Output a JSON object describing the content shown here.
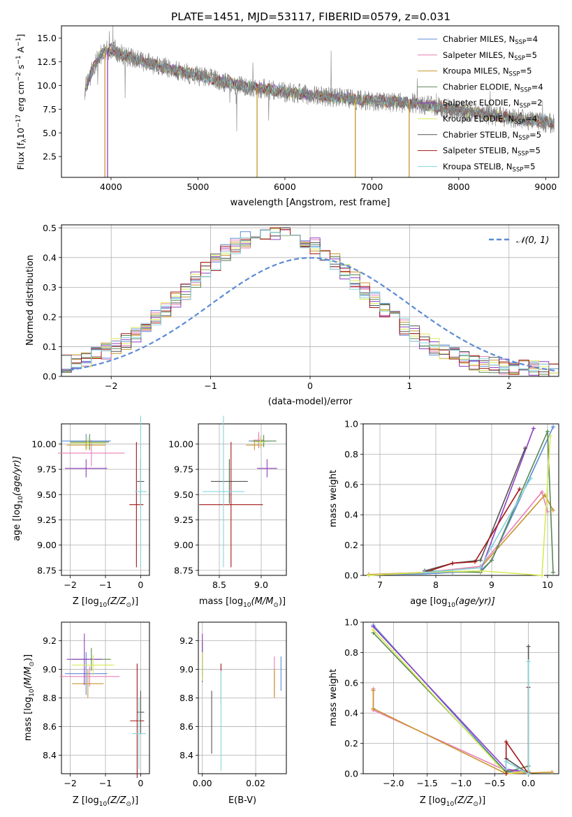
{
  "figure_title": "PLATE=1451, MJD=53117, FIBERID=0579, z=0.031",
  "model_names": [
    "Chabrier MILES, N",
    "Salpeter MILES, N",
    "Kroupa MILES, N",
    "Chabrier ELODIE, N",
    "Salpeter ELODIE, N",
    "Kroupa ELODIE, N",
    "Chabrier STELIB, N",
    "Salpeter STELIB, N",
    "Kroupa STELIB, N"
  ],
  "model_nssp_subscript": "SSP",
  "model_nssp": [
    "=4",
    "=5",
    "=5",
    "=4",
    "=2",
    "=4",
    "=5",
    "=5",
    "=5"
  ],
  "model_colors": [
    "#5b8bd6",
    "#e97fb5",
    "#c8952e",
    "#5a8a55",
    "#8e3fbf",
    "#d8ea56",
    "#555555",
    "#a31616",
    "#86d5dd"
  ],
  "axis_labels": {
    "spectrum_x": "wavelength [Angstrom, rest frame]",
    "spectrum_y_1": "Flux [f",
    "spectrum_y_2": "10",
    "spectrum_y_3": "−17",
    "spectrum_y_4": " erg cm",
    "spectrum_y_5": "−2",
    "spectrum_y_6": " s",
    "spectrum_y_7": "−1",
    "spectrum_y_8": " A",
    "spectrum_y_9": "−1",
    "spectrum_y_10": "]",
    "hist_x": "(data-model)/error",
    "hist_y": "Normed distribution",
    "hist_legend": "𝒩(0, 1)",
    "age_y": "age  [log",
    "age_y_tail": "(age/yr)]",
    "ten_sub": "10",
    "z_x": "Z [log",
    "z_x_tail": "(Z/Z",
    "z_x_close": ")]",
    "sun": "⊙",
    "mass_x": "mass [log",
    "mass_x_tail": "(M/M",
    "mass_x_close": ")]",
    "mw_y": "mass weight",
    "age_x": "age  [log",
    "age_x_tail": "(age/yr)]",
    "ebv_x": "E(B-V)",
    "mass_y": "mass [log",
    "mass_y_tail": "(M/M",
    "mass_y_close": ")]"
  },
  "chart_data": [
    {
      "id": "spectrum",
      "type": "line",
      "title": "PLATE=1451, MJD=53117, FIBERID=0579, z=0.031",
      "xlabel": "wavelength [Angstrom, rest frame]",
      "ylabel": "Flux [fλ10^-17 erg cm^-2 s^-1 A^-1]",
      "xlim": [
        3430,
        9150
      ],
      "ylim": [
        0.3,
        16.3
      ],
      "x_ticks": [
        4000,
        5000,
        6000,
        7000,
        8000,
        9000
      ],
      "y_ticks": [
        2.5,
        5.0,
        7.5,
        10.0,
        12.5,
        15.0
      ],
      "x_tick_labels": [
        "4000",
        "5000",
        "6000",
        "7000",
        "8000",
        "9000"
      ],
      "y_tick_labels": [
        "2.5",
        "5.0",
        "7.5",
        "10.0",
        "12.5",
        "15.0"
      ],
      "legend_position": "top-right",
      "continuum": {
        "x": [
          3700,
          3800,
          3900,
          4000,
          4200,
          4500,
          5000,
          5500,
          6000,
          6500,
          7000,
          7500,
          8000,
          8500,
          9100
        ],
        "y": [
          9.5,
          12.0,
          13.5,
          13.8,
          13.0,
          12.2,
          11.0,
          10.0,
          9.3,
          8.8,
          8.4,
          8.1,
          7.4,
          6.7,
          6.0
        ]
      },
      "observed_color": "#808080"
    },
    {
      "id": "residuals",
      "type": "histogram",
      "xlabel": "(data-model)/error",
      "ylabel": "Normed distribution",
      "xlim": [
        -2.5,
        2.5
      ],
      "ylim": [
        0,
        0.51
      ],
      "x_ticks": [
        -2,
        -1,
        0,
        1,
        2
      ],
      "y_ticks": [
        0.0,
        0.1,
        0.2,
        0.3,
        0.4,
        0.5
      ],
      "x_tick_labels": [
        "−2",
        "−1",
        "0",
        "1",
        "2"
      ],
      "y_tick_labels": [
        "0.0",
        "0.1",
        "0.2",
        "0.3",
        "0.4",
        "0.5"
      ],
      "reference_curve": {
        "name": "𝒩(0, 1)",
        "mean": 0,
        "sigma": 1,
        "color": "#5b8bd6"
      },
      "bin_width": 0.1,
      "legend_position": "top-right"
    },
    {
      "id": "age_vs_Z",
      "type": "scatter",
      "xlim": [
        -2.25,
        0.25
      ],
      "ylim": [
        8.7,
        10.2
      ],
      "x_ticks": [
        -2,
        -1,
        0
      ],
      "y_ticks": [
        8.75,
        9.0,
        9.25,
        9.5,
        9.75,
        10.0
      ],
      "x_tick_labels": [
        "−2",
        "−1",
        "0"
      ],
      "y_tick_labels": [
        "8.75",
        "9.00",
        "9.25",
        "9.50",
        "9.75",
        "10.00"
      ],
      "points": [
        {
          "x": -1.55,
          "y": 10.03,
          "xerr": 0.7,
          "yerr": 0.07
        },
        {
          "x": -1.4,
          "y": 9.91,
          "xerr": 0.95,
          "yerr": 0.13
        },
        {
          "x": -1.55,
          "y": 9.99,
          "xerr": 0.55,
          "yerr": 0.05
        },
        {
          "x": -1.45,
          "y": 10.02,
          "xerr": 0.55,
          "yerr": 0.08
        },
        {
          "x": -1.55,
          "y": 9.76,
          "xerr": 0.6,
          "yerr": 0.09
        },
        {
          "x": -1.5,
          "y": 10.01,
          "xerr": 0.5,
          "yerr": 0.06
        },
        {
          "x": 0.0,
          "y": 9.63,
          "xerr": 0.1,
          "yerr": 0.22
        },
        {
          "x": -0.12,
          "y": 9.4,
          "xerr": 0.2,
          "yerr": 0.62
        },
        {
          "x": 0.0,
          "y": 9.53,
          "xerr": 0.17,
          "yerr": 0.75
        }
      ]
    },
    {
      "id": "age_vs_mass",
      "type": "scatter",
      "xlim": [
        8.25,
        9.3
      ],
      "ylim": [
        8.7,
        10.2
      ],
      "x_ticks": [
        8.5,
        9.0
      ],
      "y_ticks": [
        8.75,
        9.0,
        9.25,
        9.5,
        9.75,
        10.0
      ],
      "x_tick_labels": [
        "8.5",
        "9.0"
      ],
      "y_tick_labels": [
        "8.75",
        "9.00",
        "9.25",
        "9.50",
        "9.75",
        "10.00"
      ],
      "points": [
        {
          "x": 8.97,
          "y": 10.03,
          "xerr": 0.12,
          "yerr": 0.07
        },
        {
          "x": 8.97,
          "y": 10.04,
          "xerr": 0.06,
          "yerr": 0.08
        },
        {
          "x": 8.92,
          "y": 9.99,
          "xerr": 0.1,
          "yerr": 0.05
        },
        {
          "x": 9.03,
          "y": 10.03,
          "xerr": 0.15,
          "yerr": 0.06
        },
        {
          "x": 9.07,
          "y": 9.76,
          "xerr": 0.12,
          "yerr": 0.09
        },
        {
          "x": 8.99,
          "y": 10.02,
          "xerr": 0.06,
          "yerr": 0.06
        },
        {
          "x": 8.62,
          "y": 9.63,
          "xerr": 0.22,
          "yerr": 0.22
        },
        {
          "x": 8.64,
          "y": 9.4,
          "xerr": 0.38,
          "yerr": 0.62
        },
        {
          "x": 8.55,
          "y": 9.53,
          "xerr": 0.25,
          "yerr": 0.75
        }
      ]
    },
    {
      "id": "massweight_vs_age",
      "type": "line",
      "xlim": [
        6.7,
        10.2
      ],
      "ylim": [
        0,
        1.0
      ],
      "x_ticks": [
        7,
        8,
        9,
        10
      ],
      "y_ticks": [
        0.0,
        0.2,
        0.4,
        0.6,
        0.8,
        1.0
      ],
      "x_tick_labels": [
        "7",
        "8",
        "9",
        "10"
      ],
      "y_tick_labels": [
        "0.0",
        "0.2",
        "0.4",
        "0.6",
        "0.8",
        "1.0"
      ],
      "series": [
        {
          "x": [
            6.8,
            7.8,
            8.3,
            8.8,
            9.0,
            10.1
          ],
          "y": [
            0.005,
            0.01,
            0.02,
            0.03,
            0.1,
            0.98
          ]
        },
        {
          "x": [
            6.8,
            7.8,
            8.8,
            9.9,
            10.0
          ],
          "y": [
            0.005,
            0.02,
            0.06,
            0.55,
            0.42
          ]
        },
        {
          "x": [
            6.8,
            7.8,
            8.8,
            9.95,
            10.1
          ],
          "y": [
            0.005,
            0.02,
            0.05,
            0.53,
            0.43
          ]
        },
        {
          "x": [
            7.8,
            8.8,
            9.0,
            10.0,
            10.1
          ],
          "y": [
            0.03,
            0.02,
            0.1,
            0.95,
            0.02
          ]
        },
        {
          "x": [
            8.8,
            9.75
          ],
          "y": [
            0.03,
            0.97
          ]
        },
        {
          "x": [
            6.8,
            7.8,
            8.8,
            9.9,
            10.05
          ],
          "y": [
            0.0,
            0.02,
            0.03,
            0.0,
            0.92
          ]
        },
        {
          "x": [
            7.8,
            8.3,
            8.8,
            9.6
          ],
          "y": [
            0.03,
            0.08,
            0.1,
            0.84
          ]
        },
        {
          "x": [
            7.8,
            8.3,
            8.7,
            9.5
          ],
          "y": [
            0.02,
            0.08,
            0.09,
            0.57
          ]
        },
        {
          "x": [
            7.8,
            8.8,
            9.0,
            9.7
          ],
          "y": [
            0.02,
            0.05,
            0.19,
            0.64
          ]
        }
      ]
    },
    {
      "id": "mass_vs_Z",
      "type": "scatter",
      "xlim": [
        -2.25,
        0.25
      ],
      "ylim": [
        8.27,
        9.33
      ],
      "x_ticks": [
        -2,
        -1,
        0
      ],
      "y_ticks": [
        8.4,
        8.6,
        8.8,
        9.0,
        9.2
      ],
      "x_tick_labels": [
        "−2",
        "−1",
        "0"
      ],
      "y_tick_labels": [
        "8.4",
        "8.6",
        "8.8",
        "9.0",
        "9.2"
      ],
      "points": [
        {
          "x": -1.55,
          "y": 8.97,
          "xerr": 0.6,
          "yerr": 0.15
        },
        {
          "x": -1.45,
          "y": 8.95,
          "xerr": 0.85,
          "yerr": 0.07
        },
        {
          "x": -1.5,
          "y": 8.9,
          "xerr": 0.45,
          "yerr": 0.1
        },
        {
          "x": -1.4,
          "y": 9.07,
          "xerr": 0.55,
          "yerr": 0.08
        },
        {
          "x": -1.6,
          "y": 9.07,
          "xerr": 0.5,
          "yerr": 0.18
        },
        {
          "x": -1.35,
          "y": 9.03,
          "xerr": 0.6,
          "yerr": 0.07
        },
        {
          "x": 0.0,
          "y": 8.7,
          "xerr": 0.1,
          "yerr": 0.15
        },
        {
          "x": -0.1,
          "y": 8.64,
          "xerr": 0.2,
          "yerr": 0.4
        },
        {
          "x": -0.05,
          "y": 8.55,
          "xerr": 0.2,
          "yerr": 0.25
        }
      ]
    },
    {
      "id": "mass_vs_ebv",
      "type": "scatter",
      "xlim": [
        -0.0015,
        0.0315
      ],
      "ylim": [
        8.27,
        9.33
      ],
      "x_ticks": [
        0.0,
        0.02
      ],
      "y_ticks": [
        8.4,
        8.6,
        8.8,
        9.0,
        9.2
      ],
      "x_tick_labels": [
        "0.00",
        "0.02"
      ],
      "y_tick_labels": [
        "8.4",
        "8.6",
        "8.8",
        "9.0",
        "9.2"
      ],
      "points": [
        {
          "x": 0.0295,
          "y": 8.97,
          "xerr": 0,
          "yerr": 0.12
        },
        {
          "x": 0.027,
          "y": 8.95,
          "xerr": 0,
          "yerr": 0.14
        },
        {
          "x": 0.027,
          "y": 8.9,
          "xerr": 0,
          "yerr": 0.1
        },
        {
          "x": 0.0,
          "y": 9.07,
          "xerr": 0,
          "yerr": 0.12
        },
        {
          "x": 0.0,
          "y": 9.08,
          "xerr": 0,
          "yerr": 0.17
        },
        {
          "x": 0.0,
          "y": 9.02,
          "xerr": 0,
          "yerr": 0.1
        },
        {
          "x": 0.0035,
          "y": 8.63,
          "xerr": 0,
          "yerr": 0.22
        },
        {
          "x": 0.007,
          "y": 8.9,
          "xerr": 0,
          "yerr": 0.14
        },
        {
          "x": 0.007,
          "y": 8.64,
          "xerr": 0,
          "yerr": 0.35
        }
      ]
    },
    {
      "id": "massweight_vs_Z",
      "type": "line",
      "xlim": [
        -2.45,
        0.45
      ],
      "ylim": [
        0,
        1.0
      ],
      "x_ticks": [
        -2.0,
        -1.5,
        -1.0,
        -0.5,
        0.0
      ],
      "y_ticks": [
        0.0,
        0.2,
        0.4,
        0.6,
        0.8,
        1.0
      ],
      "x_tick_labels": [
        "−2.0",
        "−1.5",
        "−1.0",
        "−0.5",
        "0.0"
      ],
      "y_tick_labels": [
        "0.0",
        "0.2",
        "0.4",
        "0.6",
        "0.8",
        "1.0"
      ],
      "series": [
        {
          "x": [
            -2.3,
            -0.33,
            0.0
          ],
          "y": [
            0.98,
            0.01,
            0.02
          ]
        },
        {
          "x": [
            -2.3,
            -2.3,
            -0.33,
            0.0
          ],
          "y": [
            0.56,
            0.42,
            0.02,
            0.01
          ]
        },
        {
          "x": [
            -2.3,
            -2.3,
            -0.33,
            0.35
          ],
          "y": [
            0.55,
            0.43,
            0.0,
            0.01
          ]
        },
        {
          "x": [
            -2.3,
            -0.33,
            0.0
          ],
          "y": [
            0.93,
            0.01,
            0.05
          ]
        },
        {
          "x": [
            -2.3,
            -0.33,
            0.0
          ],
          "y": [
            0.97,
            0.03,
            0.01
          ]
        },
        {
          "x": [
            -2.3,
            -0.33,
            0.0
          ],
          "y": [
            0.95,
            0.0,
            0.02
          ]
        },
        {
          "x": [
            -0.33,
            -0.33,
            0.0,
            0.0
          ],
          "y": [
            0.02,
            0.1,
            0.0,
            0.84
          ]
        },
        {
          "x": [
            -0.33,
            -0.33,
            0.0,
            0.0
          ],
          "y": [
            0.0,
            0.21,
            0.0,
            0.57
          ]
        },
        {
          "x": [
            -0.33,
            -0.33,
            0.0,
            0.0
          ],
          "y": [
            0.03,
            0.08,
            0.0,
            0.74
          ]
        }
      ]
    }
  ]
}
